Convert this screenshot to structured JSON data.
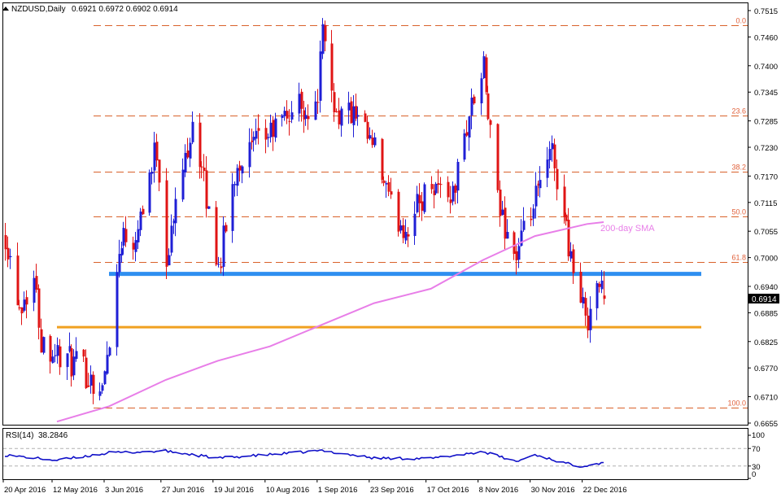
{
  "header": {
    "symbol": "NZDUSD,Daily",
    "ohlc": "0.6921 0.6972 0.6902 0.6914"
  },
  "rsi_header": {
    "label": "RSI(14)",
    "value": "38.2846"
  },
  "colors": {
    "bull": "#1f1fd6",
    "bear": "#e01414",
    "fib": "#d9622b",
    "fib_text": "#e0603a",
    "sma": "#e87ee8",
    "resistance": "#2f8ff0",
    "support": "#f0a020",
    "rsi_line": "#1010c8"
  },
  "chart_data": [
    {
      "type": "candlestick",
      "title": "NZDUSD,Daily",
      "ylim": [
        0.6655,
        0.7515
      ],
      "y_ticks": [
        "0.7515",
        "0.7460",
        "0.7400",
        "0.7345",
        "0.7285",
        "0.7230",
        "0.7170",
        "0.7115",
        "0.7055",
        "0.7000",
        "0.6940",
        "0.6885",
        "0.6825",
        "0.6770",
        "0.6710",
        "0.6655"
      ],
      "x_tick_labels": [
        "20 Apr 2016",
        "12 May 2016",
        "3 Jun 2016",
        "27 Jun 2016",
        "19 Jul 2016",
        "10 Aug 2016",
        "1 Sep 2016",
        "23 Sep 2016",
        "17 Oct 2016",
        "8 Nov 2016",
        "30 Nov 2016",
        "22 Dec 2016"
      ],
      "current_price": "0.6914",
      "fibonacci": [
        {
          "label": "0.0",
          "value": 0.7484
        },
        {
          "label": "23.6",
          "value": 0.7296
        },
        {
          "label": "38.2",
          "value": 0.7179
        },
        {
          "label": "50.0",
          "value": 0.7085
        },
        {
          "label": "61.8",
          "value": 0.6991
        },
        {
          "label": "100.0",
          "value": 0.6687
        }
      ],
      "horizontal_lines": [
        {
          "value": 0.6966,
          "from": "3 Jun 2016",
          "color": "resistance"
        },
        {
          "value": 0.6855,
          "from": "12 May 2016",
          "color": "support"
        }
      ],
      "sma_label": "200-day SMA",
      "sma_200": [
        {
          "x": "12 May 2016",
          "y": 0.6658
        },
        {
          "x": "3 Jun 2016",
          "y": 0.669
        },
        {
          "x": "27 Jun 2016",
          "y": 0.6745
        },
        {
          "x": "19 Jul 2016",
          "y": 0.6785
        },
        {
          "x": "10 Aug 2016",
          "y": 0.6815
        },
        {
          "x": "1 Sep 2016",
          "y": 0.686
        },
        {
          "x": "23 Sep 2016",
          "y": 0.6905
        },
        {
          "x": "17 Oct 2016",
          "y": 0.6935
        },
        {
          "x": "8 Nov 2016",
          "y": 0.6995
        },
        {
          "x": "30 Nov 2016",
          "y": 0.7045
        },
        {
          "x": "22 Dec 2016",
          "y": 0.707
        },
        {
          "x": "29 Dec 2016",
          "y": 0.7074
        }
      ],
      "price_path": [
        {
          "x": "20 Apr 2016",
          "y": 0.705
        },
        {
          "x": "26 Apr 2016",
          "y": 0.69
        },
        {
          "x": "2 May 2016",
          "y": 0.696
        },
        {
          "x": "5 May 2016",
          "y": 0.683
        },
        {
          "x": "12 May 2016",
          "y": 0.68
        },
        {
          "x": "24 May 2016",
          "y": 0.676
        },
        {
          "x": "31 May 2016",
          "y": 0.672
        },
        {
          "x": "3 Jun 2016",
          "y": 0.684
        },
        {
          "x": "8 Jun 2016",
          "y": 0.705
        },
        {
          "x": "13 Jun 2016",
          "y": 0.704
        },
        {
          "x": "23 Jun 2016",
          "y": 0.723
        },
        {
          "x": "27 Jun 2016",
          "y": 0.7
        },
        {
          "x": "8 Jul 2016",
          "y": 0.729
        },
        {
          "x": "19 Jul 2016",
          "y": 0.698
        },
        {
          "x": "27 Jul 2016",
          "y": 0.72
        },
        {
          "x": "10 Aug 2016",
          "y": 0.726
        },
        {
          "x": "22 Aug 2016",
          "y": 0.732
        },
        {
          "x": "29 Aug 2016",
          "y": 0.73
        },
        {
          "x": "1 Sep 2016",
          "y": 0.746
        },
        {
          "x": "7 Sep 2016",
          "y": 0.73
        },
        {
          "x": "13 Sep 2016",
          "y": 0.73
        },
        {
          "x": "23 Sep 2016",
          "y": 0.722
        },
        {
          "x": "30 Sep 2016",
          "y": 0.71
        },
        {
          "x": "6 Oct 2016",
          "y": 0.706
        },
        {
          "x": "17 Oct 2016",
          "y": 0.716
        },
        {
          "x": "26 Oct 2016",
          "y": 0.713
        },
        {
          "x": "2 Nov 2016",
          "y": 0.73
        },
        {
          "x": "8 Nov 2016",
          "y": 0.739
        },
        {
          "x": "14 Nov 2016",
          "y": 0.711
        },
        {
          "x": "22 Nov 2016",
          "y": 0.7
        },
        {
          "x": "30 Nov 2016",
          "y": 0.712
        },
        {
          "x": "7 Dec 2016",
          "y": 0.722
        },
        {
          "x": "13 Dec 2016",
          "y": 0.706
        },
        {
          "x": "19 Dec 2016",
          "y": 0.69
        },
        {
          "x": "22 Dec 2016",
          "y": 0.688
        },
        {
          "x": "26 Dec 2016",
          "y": 0.695
        },
        {
          "x": "29 Dec 2016",
          "y": 0.6914
        }
      ]
    },
    {
      "type": "line",
      "title": "RSI(14) 38.2846",
      "ylim": [
        0,
        100
      ],
      "y_ticks": [
        "100",
        "70",
        "30",
        "0"
      ],
      "levels": [
        70,
        30
      ],
      "rsi_path": [
        {
          "x": "20 Apr 2016",
          "y": 55
        },
        {
          "x": "12 May 2016",
          "y": 43
        },
        {
          "x": "3 Jun 2016",
          "y": 60
        },
        {
          "x": "27 Jun 2016",
          "y": 64
        },
        {
          "x": "19 Jul 2016",
          "y": 48
        },
        {
          "x": "10 Aug 2016",
          "y": 56
        },
        {
          "x": "1 Sep 2016",
          "y": 65
        },
        {
          "x": "23 Sep 2016",
          "y": 48
        },
        {
          "x": "17 Oct 2016",
          "y": 47
        },
        {
          "x": "8 Nov 2016",
          "y": 63
        },
        {
          "x": "22 Nov 2016",
          "y": 40
        },
        {
          "x": "30 Nov 2016",
          "y": 56
        },
        {
          "x": "13 Dec 2016",
          "y": 36
        },
        {
          "x": "19 Dec 2016",
          "y": 30
        },
        {
          "x": "22 Dec 2016",
          "y": 32
        },
        {
          "x": "29 Dec 2016",
          "y": 38
        }
      ]
    }
  ]
}
